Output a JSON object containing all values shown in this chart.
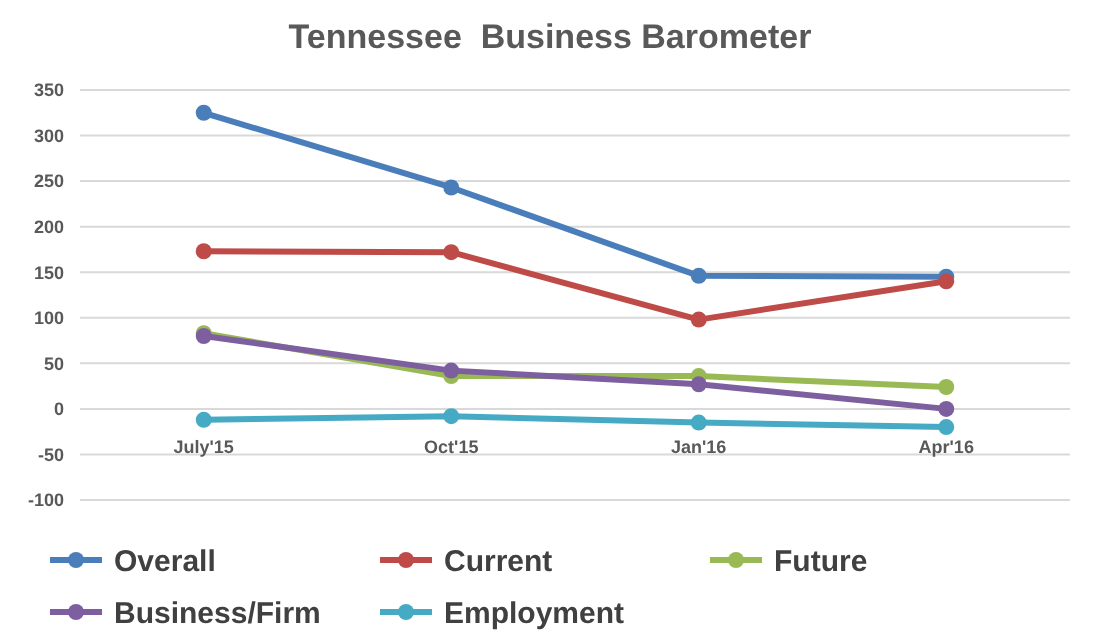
{
  "chart_data": {
    "type": "line",
    "title": "Tennessee  Business Barometer",
    "categories": [
      "July'15",
      "Oct'15",
      "Jan'16",
      "Apr'16"
    ],
    "series": [
      {
        "name": "Overall",
        "color": "#4a7ebb",
        "values": [
          325,
          243,
          146,
          145
        ]
      },
      {
        "name": "Current",
        "color": "#be4b48",
        "values": [
          173,
          172,
          98,
          140
        ]
      },
      {
        "name": "Future",
        "color": "#98b954",
        "values": [
          83,
          36,
          36,
          24
        ]
      },
      {
        "name": "Business/Firm",
        "color": "#7d5fa0",
        "values": [
          80,
          42,
          27,
          0
        ]
      },
      {
        "name": "Employment",
        "color": "#46aac5",
        "values": [
          -12,
          -8,
          -15,
          -20
        ]
      }
    ],
    "ylim": [
      -100,
      350
    ],
    "yticks": [
      -100,
      -50,
      0,
      50,
      100,
      150,
      200,
      250,
      300,
      350
    ],
    "grid": "y",
    "legend": "bottom",
    "marker": "circle",
    "line_style": "solid"
  }
}
